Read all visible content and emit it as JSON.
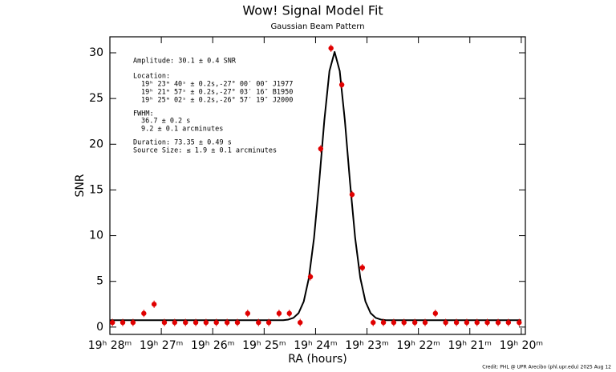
{
  "chart_data": {
    "type": "scatter",
    "title": "Wow! Signal Model Fit",
    "subtitle": "Gaussian Beam Pattern",
    "x_label": "RA (hours)",
    "y_label": "SNR",
    "credit": "Credit: PHL @ UPR Arecibo (phl.upr.edu) 2025 Aug 12",
    "annotations": [
      "Amplitude: 30.1 ± 0.4 SNR",
      "Location:",
      "19ʰ 23ᵐ 40ˢ ± 0.2s,-27° 00′ 00″ J1977",
      "19ʰ 21ᵐ 57ˢ ± 0.2s,-27° 03′ 16″ B1950",
      "19ʰ 25ᵐ 02ˢ ± 0.2s,-26° 57′ 19″ J2000",
      "FWHM:",
      "36.7 ± 0.2 s",
      "9.2 ± 0.1 arcminutes",
      "Duration: 73.35 ± 0.49 s",
      "Source Size: ≤ 1.9 ± 0.1 arcminutes"
    ],
    "xlim": [
      28,
      19.92
    ],
    "ylim": [
      -0.8,
      31.75
    ],
    "xticks": [
      {
        "value": 28,
        "label": "19ʰ 28ᵐ"
      },
      {
        "value": 27,
        "label": "19ʰ 27ᵐ"
      },
      {
        "value": 26,
        "label": "19ʰ 26ᵐ"
      },
      {
        "value": 25,
        "label": "19ʰ 25ᵐ"
      },
      {
        "value": 24,
        "label": "19ʰ 24ᵐ"
      },
      {
        "value": 23,
        "label": "19ʰ 23ᵐ"
      },
      {
        "value": 22,
        "label": "19ʰ 22ᵐ"
      },
      {
        "value": 21,
        "label": "19ʰ 21ᵐ"
      },
      {
        "value": 20,
        "label": "19ʰ 20ᵐ"
      }
    ],
    "yticks": [
      0,
      5,
      10,
      15,
      20,
      25,
      30
    ],
    "series": [
      {
        "type": "scatter",
        "color": "#e00000",
        "yerr": 0.4,
        "x": [
          27.95,
          27.75,
          27.55,
          27.34,
          27.14,
          26.94,
          26.74,
          26.53,
          26.33,
          26.13,
          25.93,
          25.72,
          25.52,
          25.32,
          25.11,
          24.91,
          24.71,
          24.51,
          24.3,
          24.1,
          23.9,
          23.7,
          23.49,
          23.29,
          23.09,
          22.88,
          22.68,
          22.48,
          22.28,
          22.07,
          21.87,
          21.67,
          21.47,
          21.26,
          21.06,
          20.86,
          20.66,
          20.45,
          20.25,
          20.04
        ],
        "values": [
          0.5,
          0.5,
          0.5,
          1.5,
          2.5,
          0.5,
          0.5,
          0.5,
          0.5,
          0.5,
          0.5,
          0.5,
          0.5,
          1.5,
          0.5,
          0.5,
          1.5,
          1.5,
          0.5,
          5.5,
          19.5,
          30.5,
          26.5,
          14.5,
          6.5,
          0.5,
          0.5,
          0.5,
          0.5,
          0.5,
          0.5,
          1.5,
          0.5,
          0.5,
          0.5,
          0.5,
          0.5,
          0.5,
          0.5,
          0.5
        ]
      },
      {
        "type": "line",
        "color": "#000000",
        "x": [
          28,
          24.63,
          24.53,
          24.43,
          24.33,
          24.23,
          24.13,
          24.03,
          23.93,
          23.83,
          23.73,
          23.63,
          23.53,
          23.43,
          23.33,
          23.23,
          23.13,
          23.03,
          22.93,
          22.83,
          22.73,
          22.63,
          20
        ],
        "values": [
          0.75,
          0.75,
          0.82,
          1.01,
          1.53,
          2.8,
          5.37,
          9.74,
          15.83,
          22.58,
          28.01,
          30.1,
          28.01,
          22.58,
          15.83,
          9.74,
          5.37,
          2.8,
          1.53,
          1.01,
          0.82,
          0.75,
          0.75
        ]
      }
    ]
  }
}
